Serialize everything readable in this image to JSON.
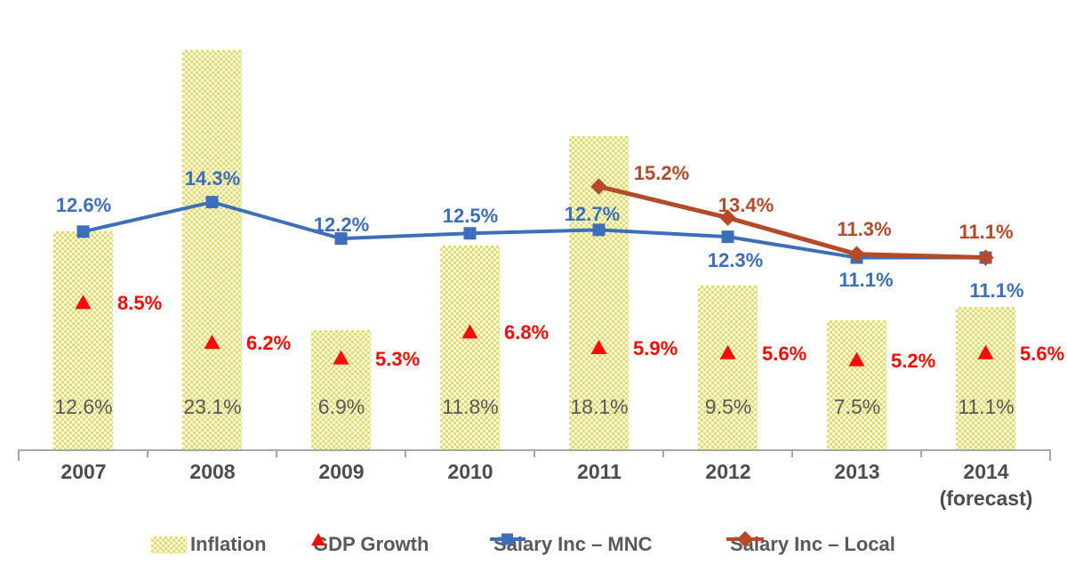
{
  "chart_data": {
    "type": "combo",
    "background": "#FFFFFF",
    "categories": [
      "2007",
      "2008",
      "2009",
      "2010",
      "2011",
      "2012",
      "2013",
      "2014"
    ],
    "category_notes": {
      "2014": "(forecast)"
    },
    "series": [
      {
        "name": "Inflation",
        "type": "bar",
        "marker": "patterned-bar",
        "color": "#E4DD69",
        "pattern_light_color": "#FCFAE6",
        "label_color": "#595959",
        "values": [
          12.6,
          23.1,
          6.9,
          11.8,
          18.1,
          9.5,
          7.5,
          11.1
        ],
        "data_labels": [
          "12.6%",
          "23.1%",
          "6.9%",
          "11.8%",
          "18.1%",
          "9.5%",
          "7.5%",
          "11.1%"
        ]
      },
      {
        "name": "GDP Growth",
        "type": "scatter",
        "marker": "triangle",
        "color": "#F90B00",
        "label_color": "#F90B00",
        "values": [
          8.5,
          6.2,
          5.3,
          6.8,
          5.9,
          5.6,
          5.2,
          5.6
        ],
        "data_labels": [
          "8.5%",
          "6.2%",
          "5.3%",
          "6.8%",
          "5.9%",
          "5.6%",
          "5.2%",
          "5.6%"
        ]
      },
      {
        "name": "Salary Inc – MNC",
        "type": "line",
        "marker": "square",
        "color": "#3B6FBA",
        "label_color": "#3B6FBA",
        "values": [
          12.6,
          14.3,
          12.2,
          12.5,
          12.7,
          12.3,
          11.1,
          11.1
        ],
        "data_labels": [
          "12.6%",
          "14.3%",
          "12.2%",
          "12.5%",
          "12.7%",
          "12.3%",
          "11.1%",
          "11.1%"
        ]
      },
      {
        "name": "Salary Inc – Local",
        "type": "line",
        "marker": "diamond",
        "color": "#B44A28",
        "label_color": "#B44A28",
        "values": [
          null,
          null,
          null,
          null,
          15.2,
          13.4,
          11.3,
          11.1
        ],
        "data_labels": [
          null,
          null,
          null,
          null,
          "15.2%",
          "13.4%",
          "11.3%",
          "11.1%"
        ]
      }
    ],
    "y_axis": {
      "visible": false,
      "implied_range": [
        0,
        23.5
      ]
    },
    "x_axis": {
      "line_color": "#A6A6A6",
      "label_color": "#4D4D4D"
    },
    "legend": {
      "position": "bottom"
    }
  }
}
